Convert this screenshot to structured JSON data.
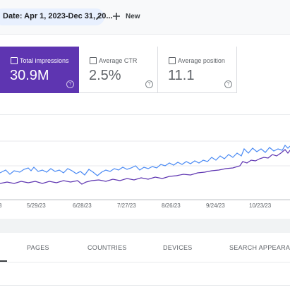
{
  "filters": {
    "date": "Date: Apr 1, 2023-Dec 31, 20...",
    "new": "New"
  },
  "metrics": [
    {
      "label": "Total impressions",
      "value": "30.9M"
    },
    {
      "label": "Average CTR",
      "value": "2.5%"
    },
    {
      "label": "Average position",
      "value": "11.1"
    }
  ],
  "chart": {
    "x_labels": [
      "3",
      "5/29/23",
      "6/28/23",
      "7/27/23",
      "8/26/23",
      "9/24/23",
      "10/23/23"
    ]
  },
  "tabs": [
    "PAGES",
    "COUNTRIES",
    "DEVICES",
    "SEARCH APPEARANCE"
  ]
}
